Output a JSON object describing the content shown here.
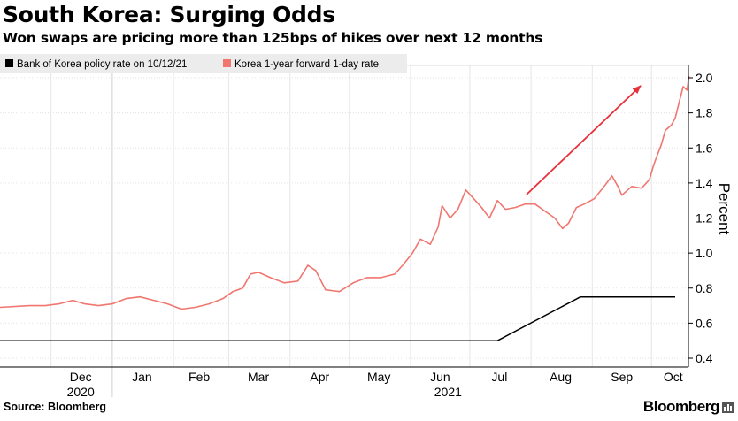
{
  "title": "South Korea: Surging Odds",
  "subtitle": "Won swaps are pricing more than 125bps of hikes over next 12 months",
  "source": "Source: Bloomberg",
  "brand": "Bloomberg",
  "colors": {
    "policy": "#000000",
    "forward": "#f0766f",
    "arrow": "#e8303a",
    "grid": "#dddddd",
    "legend_bg": "#ececec"
  },
  "chart_data": {
    "type": "line",
    "title": "",
    "xlabel": "",
    "ylabel": "Percent",
    "ylim": [
      0.4,
      2.1
    ],
    "y_ticks": [
      "2.0",
      "1.8",
      "1.6",
      "1.4",
      "1.2",
      "1.0",
      "0.8",
      "0.6",
      "0.4"
    ],
    "x_tick_labels": [
      "Dec",
      "Jan",
      "Feb",
      "Mar",
      "Apr",
      "May",
      "Jun",
      "Jul",
      "Aug",
      "Sep",
      "Oct"
    ],
    "year_labels": [
      "2020",
      "2021"
    ],
    "grid": true,
    "legend_position": "top-left",
    "x_start": "2020-11-15",
    "x_end": "2021-10-21",
    "series": [
      {
        "name": "Bank of Korea policy rate on 10/12/21",
        "color": "#000000",
        "points": [
          [
            "2020-11-15",
            0.5
          ],
          [
            "2021-07-15",
            0.5
          ],
          [
            "2021-08-26",
            0.75
          ],
          [
            "2021-10-13",
            0.75
          ]
        ]
      },
      {
        "name": "Korea 1-year forward 1-day rate",
        "color": "#f0766f",
        "points": [
          [
            "2020-11-15",
            0.69
          ],
          [
            "2020-11-20",
            0.7
          ],
          [
            "2020-11-28",
            0.7
          ],
          [
            "2020-12-05",
            0.71
          ],
          [
            "2020-12-12",
            0.73
          ],
          [
            "2020-12-18",
            0.71
          ],
          [
            "2020-12-25",
            0.7
          ],
          [
            "2021-01-01",
            0.71
          ],
          [
            "2021-01-08",
            0.74
          ],
          [
            "2021-01-15",
            0.75
          ],
          [
            "2021-01-22",
            0.73
          ],
          [
            "2021-01-29",
            0.71
          ],
          [
            "2021-02-05",
            0.68
          ],
          [
            "2021-02-12",
            0.69
          ],
          [
            "2021-02-19",
            0.71
          ],
          [
            "2021-02-26",
            0.74
          ],
          [
            "2021-03-03",
            0.78
          ],
          [
            "2021-03-08",
            0.8
          ],
          [
            "2021-03-12",
            0.88
          ],
          [
            "2021-03-16",
            0.89
          ],
          [
            "2021-03-22",
            0.86
          ],
          [
            "2021-03-29",
            0.83
          ],
          [
            "2021-04-05",
            0.84
          ],
          [
            "2021-04-10",
            0.93
          ],
          [
            "2021-04-14",
            0.9
          ],
          [
            "2021-04-19",
            0.79
          ],
          [
            "2021-04-26",
            0.78
          ],
          [
            "2021-05-03",
            0.83
          ],
          [
            "2021-05-10",
            0.86
          ],
          [
            "2021-05-17",
            0.86
          ],
          [
            "2021-05-24",
            0.88
          ],
          [
            "2021-05-28",
            0.93
          ],
          [
            "2021-06-02",
            1.0
          ],
          [
            "2021-06-06",
            1.08
          ],
          [
            "2021-06-11",
            1.05
          ],
          [
            "2021-06-15",
            1.15
          ],
          [
            "2021-06-17",
            1.27
          ],
          [
            "2021-06-21",
            1.2
          ],
          [
            "2021-06-25",
            1.25
          ],
          [
            "2021-06-29",
            1.36
          ],
          [
            "2021-07-03",
            1.31
          ],
          [
            "2021-07-07",
            1.26
          ],
          [
            "2021-07-11",
            1.2
          ],
          [
            "2021-07-15",
            1.3
          ],
          [
            "2021-07-19",
            1.25
          ],
          [
            "2021-07-24",
            1.26
          ],
          [
            "2021-07-29",
            1.28
          ],
          [
            "2021-08-03",
            1.28
          ],
          [
            "2021-08-08",
            1.24
          ],
          [
            "2021-08-13",
            1.2
          ],
          [
            "2021-08-17",
            1.14
          ],
          [
            "2021-08-20",
            1.17
          ],
          [
            "2021-08-24",
            1.26
          ],
          [
            "2021-08-28",
            1.28
          ],
          [
            "2021-09-02",
            1.31
          ],
          [
            "2021-09-07",
            1.38
          ],
          [
            "2021-09-11",
            1.44
          ],
          [
            "2021-09-14",
            1.38
          ],
          [
            "2021-09-16",
            1.33
          ],
          [
            "2021-09-21",
            1.38
          ],
          [
            "2021-09-26",
            1.37
          ],
          [
            "2021-09-30",
            1.42
          ],
          [
            "2021-10-02",
            1.5
          ],
          [
            "2021-10-04",
            1.56
          ],
          [
            "2021-10-06",
            1.62
          ],
          [
            "2021-10-08",
            1.7
          ],
          [
            "2021-10-11",
            1.73
          ],
          [
            "2021-10-13",
            1.77
          ],
          [
            "2021-10-15",
            1.86
          ],
          [
            "2021-10-17",
            1.95
          ],
          [
            "2021-10-19",
            1.93
          ],
          [
            "2021-10-20",
            2.01
          ]
        ]
      }
    ]
  }
}
